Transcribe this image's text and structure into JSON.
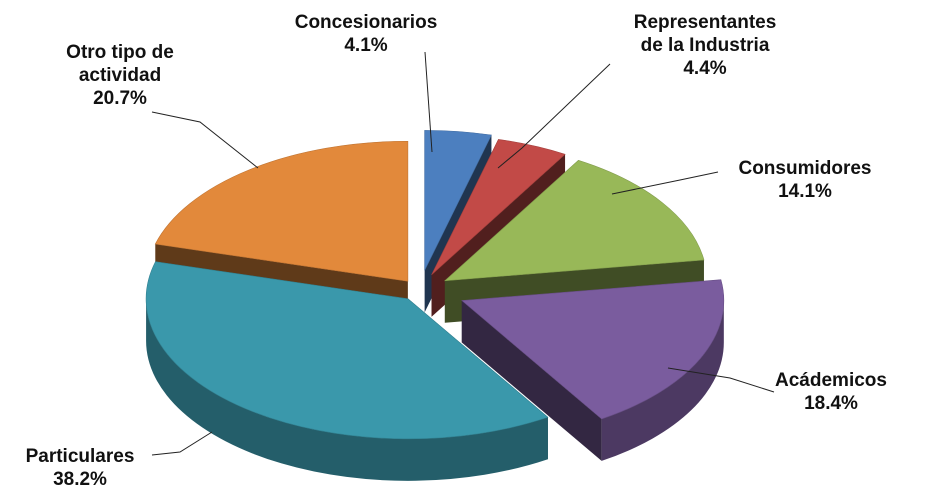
{
  "chart_data": {
    "type": "pie",
    "style": "3d-exploded",
    "legend": "none",
    "slices": [
      {
        "name": "Concesionarios",
        "value": 4.1,
        "value_label": "4.1%",
        "color": "#4c7fbf"
      },
      {
        "name": "Representantes de la Industria",
        "name_lines": [
          "Representantes",
          "de la Industria"
        ],
        "value": 4.4,
        "value_label": "4.4%",
        "color": "#c24a47"
      },
      {
        "name": "Consumidores",
        "value": 14.1,
        "value_label": "14.1%",
        "color": "#98b858"
      },
      {
        "name": "Acádemicos",
        "value": 18.4,
        "value_label": "18.4%",
        "color": "#7a5c9e"
      },
      {
        "name": "Particulares",
        "value": 38.2,
        "value_label": "38.2%",
        "color": "#3a98ab"
      },
      {
        "name": "Otro tipo de actividad",
        "name_lines": [
          "Otro tipo de",
          "actividad"
        ],
        "value": 20.7,
        "value_label": "20.7%",
        "color": "#e2893b"
      }
    ]
  }
}
